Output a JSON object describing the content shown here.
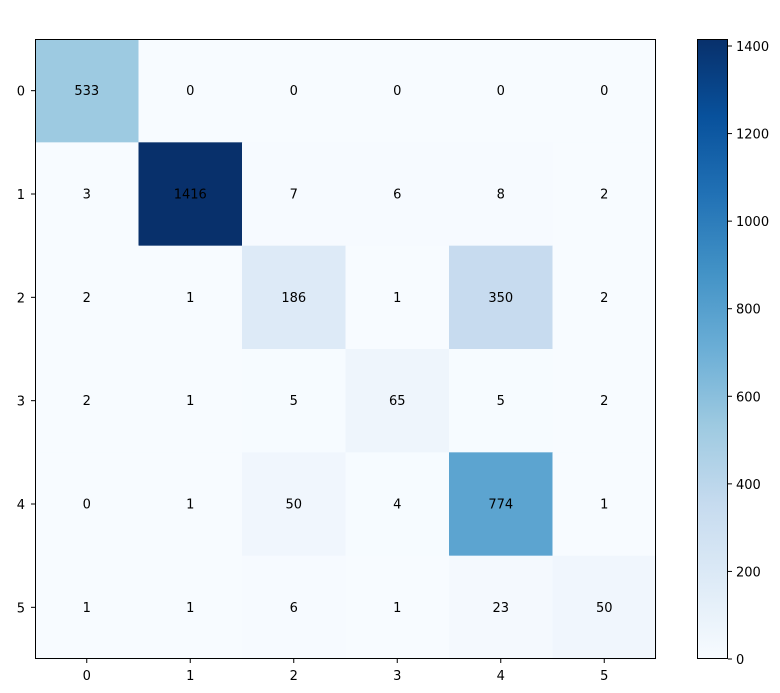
{
  "chart_data": {
    "type": "heatmap",
    "title": "",
    "xlabel": "",
    "ylabel": "",
    "x_categories": [
      "0",
      "1",
      "2",
      "3",
      "4",
      "5"
    ],
    "y_categories": [
      "0",
      "1",
      "2",
      "3",
      "4",
      "5"
    ],
    "values": [
      [
        533,
        0,
        0,
        0,
        0,
        0
      ],
      [
        3,
        1416,
        7,
        6,
        8,
        2
      ],
      [
        2,
        1,
        186,
        1,
        350,
        2
      ],
      [
        2,
        1,
        5,
        65,
        5,
        2
      ],
      [
        0,
        1,
        50,
        4,
        774,
        1
      ],
      [
        1,
        1,
        6,
        1,
        23,
        50
      ]
    ],
    "colormap": "Blues",
    "colormap_colors": [
      "#f7fbff",
      "#deebf7",
      "#c6dbef",
      "#9ecae1",
      "#6baed6",
      "#4292c6",
      "#2171b5",
      "#08519c",
      "#08306b"
    ],
    "vmin": 0,
    "vmax": 1416,
    "colorbar_ticks": [
      "0",
      "200",
      "400",
      "600",
      "800",
      "1000",
      "1200",
      "1400"
    ],
    "cell_text_color": "#000000",
    "grid": false
  }
}
